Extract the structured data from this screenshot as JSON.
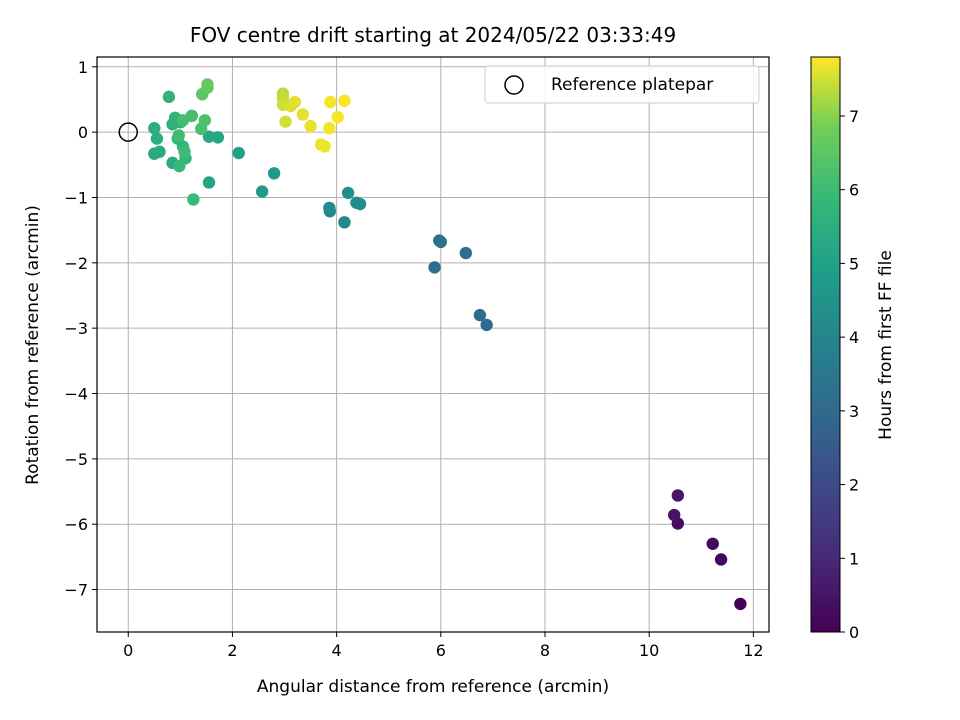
{
  "chart_data": {
    "type": "scatter",
    "title": "FOV centre drift starting at 2024/05/22 03:33:49",
    "xlabel": "Angular distance from reference (arcmin)",
    "ylabel": "Rotation from reference (arcmin)",
    "xlim": [
      -0.6,
      12.3
    ],
    "ylim": [
      -7.65,
      1.15
    ],
    "xticks": [
      0,
      2,
      4,
      6,
      8,
      10,
      12
    ],
    "yticks": [
      1,
      0,
      -1,
      -2,
      -3,
      -4,
      -5,
      -6,
      -7
    ],
    "grid": true,
    "legend": {
      "position": "top-right",
      "entries": [
        "Reference platepar"
      ]
    },
    "reference_point": {
      "x": 0,
      "y": 0
    },
    "colorbar": {
      "label": "Hours from first FF file",
      "range": [
        0,
        7.8
      ],
      "ticks": [
        0,
        1,
        2,
        3,
        4,
        5,
        6,
        7
      ],
      "colormap": "viridis"
    },
    "points": [
      {
        "x": 11.75,
        "y": -7.22,
        "c": 0.05
      },
      {
        "x": 11.38,
        "y": -6.54,
        "c": 0.15
      },
      {
        "x": 11.22,
        "y": -6.3,
        "c": 0.25
      },
      {
        "x": 10.55,
        "y": -5.99,
        "c": 0.35
      },
      {
        "x": 10.48,
        "y": -5.86,
        "c": 0.45
      },
      {
        "x": 10.55,
        "y": -5.56,
        "c": 0.55
      },
      {
        "x": 6.88,
        "y": -2.95,
        "c": 3.0
      },
      {
        "x": 6.75,
        "y": -2.8,
        "c": 3.05
      },
      {
        "x": 5.88,
        "y": -2.07,
        "c": 3.1
      },
      {
        "x": 6.48,
        "y": -1.85,
        "c": 3.15
      },
      {
        "x": 6.0,
        "y": -1.68,
        "c": 3.2
      },
      {
        "x": 5.97,
        "y": -1.66,
        "c": 3.25
      },
      {
        "x": 4.15,
        "y": -1.38,
        "c": 4.1
      },
      {
        "x": 3.87,
        "y": -1.21,
        "c": 4.15
      },
      {
        "x": 3.86,
        "y": -1.16,
        "c": 4.2
      },
      {
        "x": 4.45,
        "y": -1.1,
        "c": 4.25
      },
      {
        "x": 4.38,
        "y": -1.08,
        "c": 4.3
      },
      {
        "x": 4.22,
        "y": -0.93,
        "c": 4.35
      },
      {
        "x": 2.57,
        "y": -0.91,
        "c": 4.7
      },
      {
        "x": 2.8,
        "y": -0.63,
        "c": 4.75
      },
      {
        "x": 2.12,
        "y": -0.32,
        "c": 4.95
      },
      {
        "x": 1.55,
        "y": -0.77,
        "c": 5.1
      },
      {
        "x": 1.72,
        "y": -0.08,
        "c": 5.2
      },
      {
        "x": 1.55,
        "y": -0.07,
        "c": 5.25
      },
      {
        "x": 0.5,
        "y": -0.33,
        "c": 5.3
      },
      {
        "x": 0.6,
        "y": -0.3,
        "c": 5.35
      },
      {
        "x": 0.85,
        "y": -0.47,
        "c": 5.4
      },
      {
        "x": 0.55,
        "y": -0.1,
        "c": 5.45
      },
      {
        "x": 0.5,
        "y": 0.06,
        "c": 5.5
      },
      {
        "x": 0.85,
        "y": 0.12,
        "c": 5.55
      },
      {
        "x": 1.0,
        "y": 0.15,
        "c": 5.6
      },
      {
        "x": 0.9,
        "y": 0.22,
        "c": 5.65
      },
      {
        "x": 0.78,
        "y": 0.54,
        "c": 5.7
      },
      {
        "x": 0.95,
        "y": -0.1,
        "c": 5.75
      },
      {
        "x": 1.05,
        "y": -0.22,
        "c": 5.8
      },
      {
        "x": 1.1,
        "y": -0.4,
        "c": 5.85
      },
      {
        "x": 0.98,
        "y": -0.52,
        "c": 5.9
      },
      {
        "x": 1.25,
        "y": -1.03,
        "c": 5.95
      },
      {
        "x": 1.08,
        "y": -0.3,
        "c": 6.0
      },
      {
        "x": 0.97,
        "y": -0.05,
        "c": 6.05
      },
      {
        "x": 1.05,
        "y": 0.18,
        "c": 6.1
      },
      {
        "x": 1.22,
        "y": 0.25,
        "c": 6.15
      },
      {
        "x": 1.4,
        "y": 0.05,
        "c": 6.2
      },
      {
        "x": 1.47,
        "y": 0.18,
        "c": 6.25
      },
      {
        "x": 1.42,
        "y": 0.58,
        "c": 6.5
      },
      {
        "x": 1.52,
        "y": 0.68,
        "c": 6.55
      },
      {
        "x": 1.52,
        "y": 0.73,
        "c": 6.6
      },
      {
        "x": 2.97,
        "y": 0.59,
        "c": 7.35
      },
      {
        "x": 2.97,
        "y": 0.52,
        "c": 7.4
      },
      {
        "x": 2.97,
        "y": 0.42,
        "c": 7.45
      },
      {
        "x": 3.02,
        "y": 0.16,
        "c": 7.5
      },
      {
        "x": 3.12,
        "y": 0.4,
        "c": 7.55
      },
      {
        "x": 3.2,
        "y": 0.46,
        "c": 7.6
      },
      {
        "x": 3.35,
        "y": 0.27,
        "c": 7.62
      },
      {
        "x": 3.5,
        "y": 0.09,
        "c": 7.65
      },
      {
        "x": 3.7,
        "y": -0.19,
        "c": 7.68
      },
      {
        "x": 3.77,
        "y": -0.22,
        "c": 7.7
      },
      {
        "x": 3.86,
        "y": 0.06,
        "c": 7.72
      },
      {
        "x": 3.88,
        "y": 0.46,
        "c": 7.74
      },
      {
        "x": 4.02,
        "y": 0.23,
        "c": 7.76
      },
      {
        "x": 4.15,
        "y": 0.48,
        "c": 7.78
      }
    ]
  }
}
